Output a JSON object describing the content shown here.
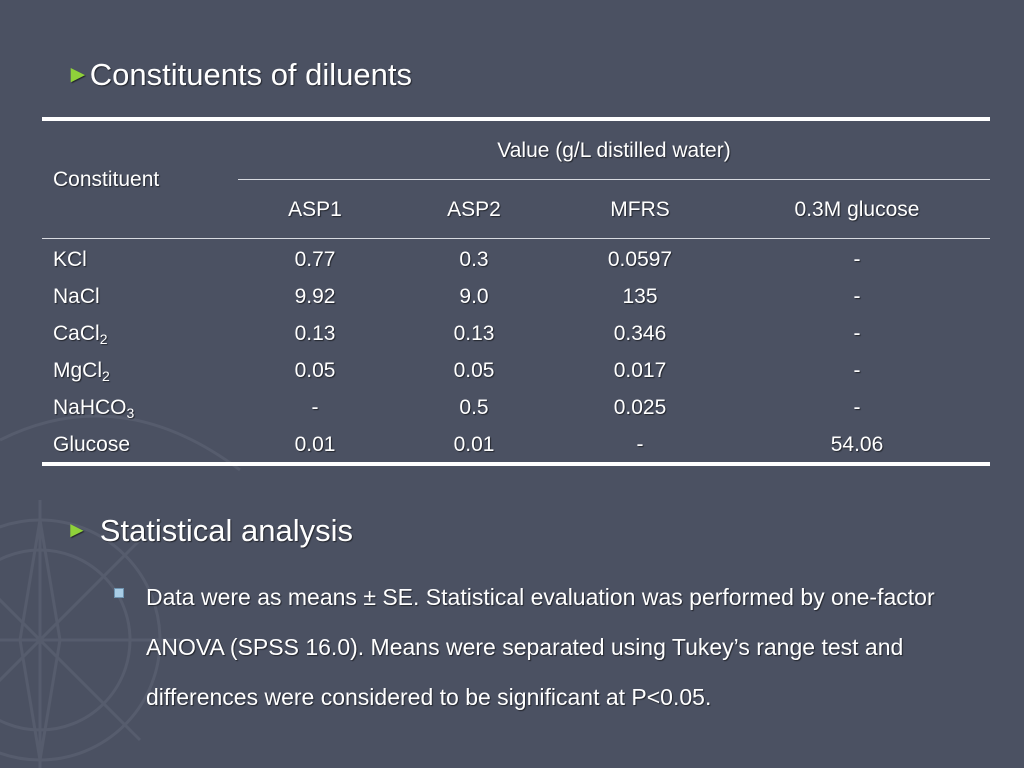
{
  "slide": {
    "title_arrow": "►",
    "title": "Constituents of diluents",
    "table": {
      "row_header": "Constituent",
      "group_header": "Value (g/L distilled water)",
      "columns": [
        "ASP1",
        "ASP2",
        "MFRS",
        "0.3M glucose"
      ],
      "rows": [
        {
          "base": "KCl",
          "sub": "",
          "tail": "",
          "values": [
            "0.77",
            "0.3",
            "0.0597",
            "-"
          ]
        },
        {
          "base": "NaCl",
          "sub": "",
          "tail": "",
          "values": [
            "9.92",
            "9.0",
            "135",
            "-"
          ]
        },
        {
          "base": "CaCl",
          "sub": "2",
          "tail": "",
          "values": [
            "0.13",
            "0.13",
            "0.346",
            "-"
          ]
        },
        {
          "base": "MgCl",
          "sub": "2",
          "tail": "",
          "values": [
            "0.05",
            "0.05",
            "0.017",
            "-"
          ]
        },
        {
          "base": "NaHCO",
          "sub": "3",
          "tail": "",
          "values": [
            "-",
            "0.5",
            "0.025",
            "-"
          ]
        },
        {
          "base": "Glucose",
          "sub": "",
          "tail": "",
          "values": [
            "0.01",
            "0.01",
            "-",
            "54.06"
          ]
        }
      ]
    },
    "section_arrow": "►",
    "section_heading": "Statistical analysis",
    "paragraph": "Data were as means ± SE. Statistical evaluation was performed by one-factor ANOVA (SPSS 16.0). Means were separated using Tukey’s range test and differences were considered to be significant at P<0.05."
  },
  "colors": {
    "background": "#4b5162",
    "accent_arrow": "#8fd13a",
    "text": "#ffffff"
  }
}
